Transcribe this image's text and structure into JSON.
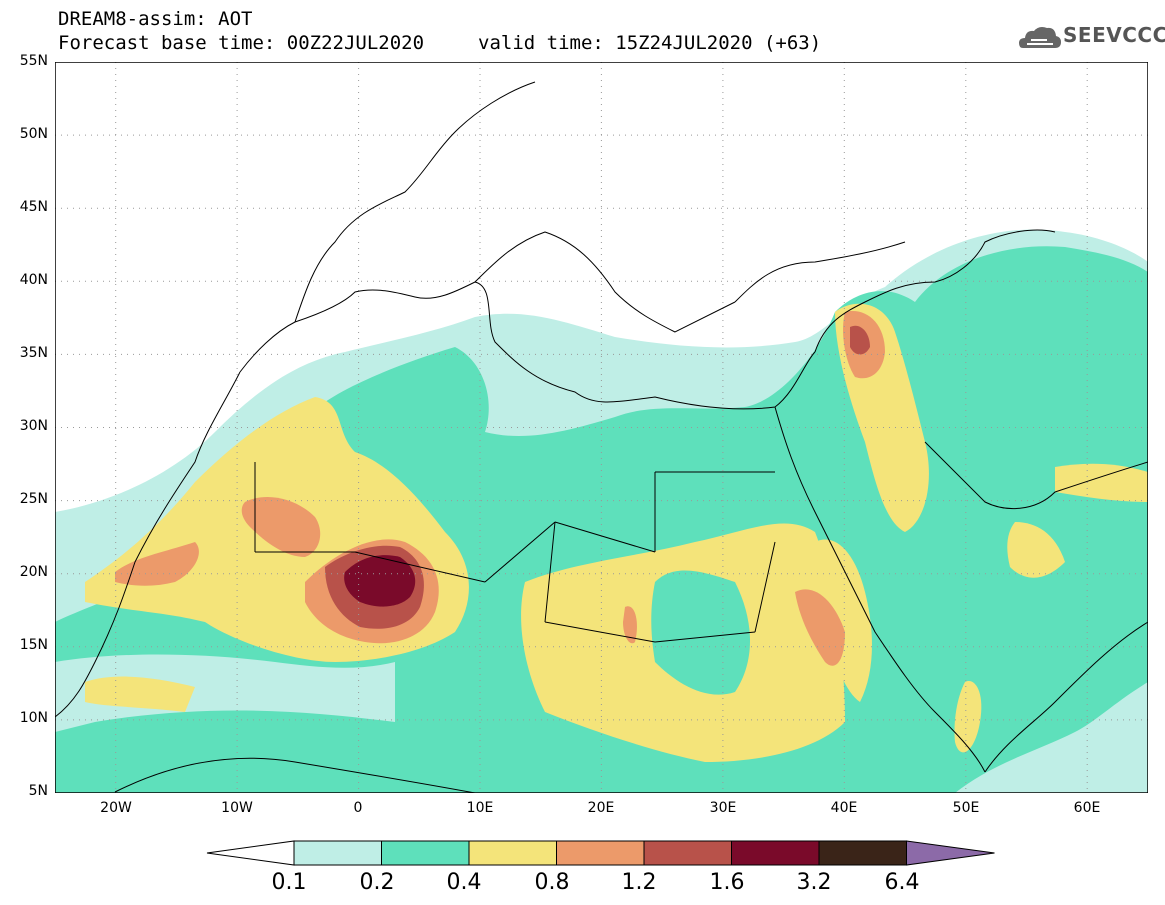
{
  "title_line1": "DREAM8-assim: AOT",
  "title_line2": "Forecast base time: 00Z22JUL2020",
  "valid_time": "valid time: 15Z24JUL2020 (+63)",
  "logo": {
    "text": "SEEVCCC",
    "icon": "cloud-icon"
  },
  "map": {
    "projection": "lat-lon",
    "lon_range": [
      -25,
      65
    ],
    "lat_range": [
      5,
      55
    ],
    "gridlines": "dotted",
    "lat_labels": [
      "55N",
      "50N",
      "45N",
      "40N",
      "35N",
      "30N",
      "25N",
      "20N",
      "15N",
      "10N",
      "5N"
    ],
    "lon_labels": [
      "20W",
      "10W",
      "0",
      "10E",
      "20E",
      "30E",
      "40E",
      "50E",
      "60E"
    ]
  },
  "colorbar": {
    "labels": [
      "0.1",
      "0.2",
      "0.4",
      "0.8",
      "1.2",
      "1.6",
      "3.2",
      "6.4"
    ],
    "colors": [
      "#ffffff",
      "#bfeee6",
      "#5ee0bb",
      "#f4e47a",
      "#ec9a6a",
      "#b8524a",
      "#7a0a2a",
      "#3a2418",
      "#8c6aa8"
    ]
  }
}
